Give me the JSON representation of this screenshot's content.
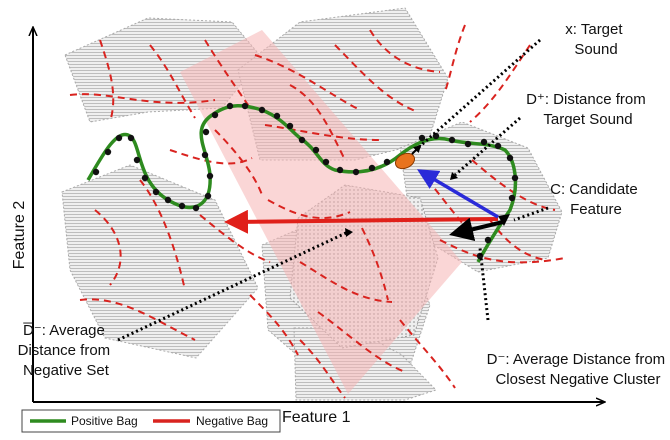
{
  "axes": {
    "x_label": "Feature 1",
    "y_label": "Feature 2"
  },
  "annotations": {
    "target": [
      "x: Target",
      "Sound"
    ],
    "d_plus": [
      "D⁺: Distance from",
      "Target Sound"
    ],
    "candidate": [
      "C: Candidate",
      "Feature"
    ],
    "d_bar_minus": [
      ": Average",
      "Distance from",
      "Negative Set"
    ],
    "d_bar_minus_symbol": "D̅⁻",
    "d_minus": [
      "D⁻: Average Distance from",
      "Closest Negative Cluster"
    ]
  },
  "legend": {
    "positive": "Positive Bag",
    "negative": "Negative Bag"
  },
  "colors": {
    "positive": "#2e8b1f",
    "negative": "#d9231f",
    "dots": "#111111",
    "target": "#e8731e",
    "d_plus_arrow": "#2a2ad8",
    "d_bar_arrow": "#e0201a",
    "d_minus_arrow": "#000000",
    "region_pink": "#f5b5b5",
    "cluster_grey": "#c9c9c9"
  }
}
